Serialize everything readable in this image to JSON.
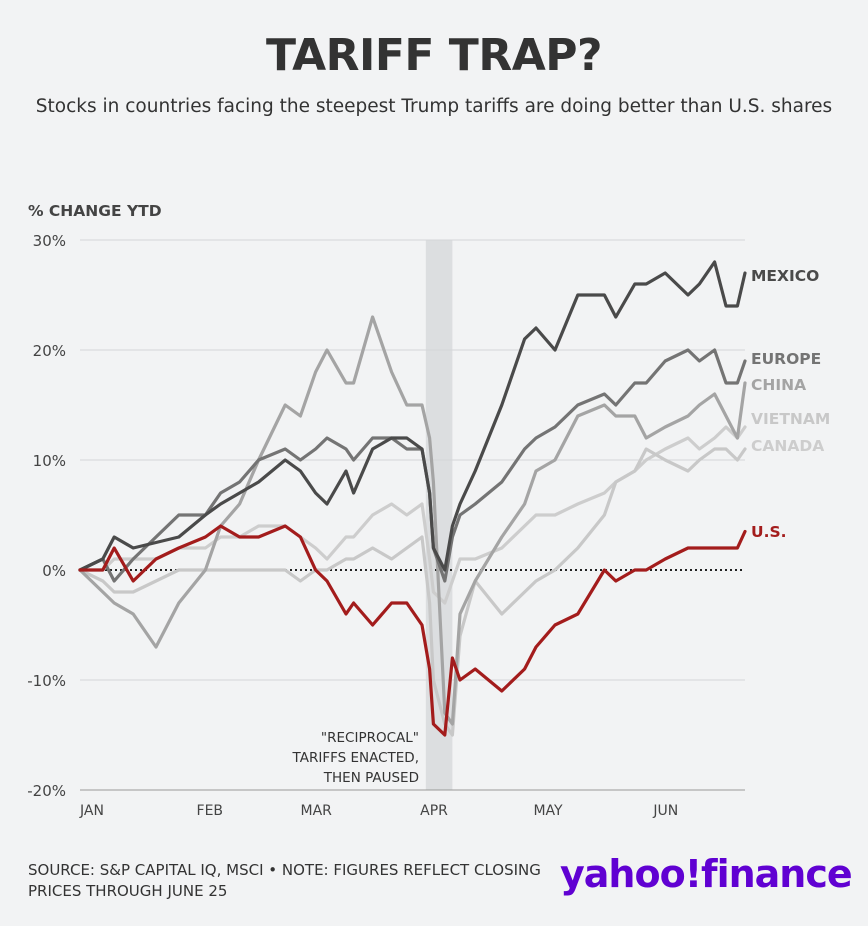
{
  "title": "TARIFF TRAP?",
  "subtitle": "Stocks in countries facing the steepest Trump tariffs are doing better than U.S. shares",
  "source": "SOURCE: S&P CAPITAL IQ, MSCI • NOTE: FIGURES REFLECT CLOSING PRICES THROUGH JUNE 25",
  "logo": {
    "text": "yahoo!finance",
    "color": "#6001d2"
  },
  "chart_data": {
    "type": "line",
    "ylabel": "% CHANGE YTD",
    "ylim": [
      -20,
      30
    ],
    "yticks": [
      "30%",
      "20%",
      "10%",
      "0%",
      "-10%",
      "-20%"
    ],
    "xlim": [
      "2025-01-01",
      "2025-06-25"
    ],
    "xticks": [
      {
        "label": "JAN",
        "date": "2025-01-01"
      },
      {
        "label": "FEB",
        "date": "2025-02-01"
      },
      {
        "label": "MAR",
        "date": "2025-03-01"
      },
      {
        "label": "APR",
        "date": "2025-04-01"
      },
      {
        "label": "MAY",
        "date": "2025-05-01"
      },
      {
        "label": "JUN",
        "date": "2025-06-01"
      }
    ],
    "grid": true,
    "zero_line": "dotted",
    "shaded_period": {
      "start": "2025-04-02",
      "end": "2025-04-09"
    },
    "annotation": [
      "\"RECIPROCAL\"",
      "TARIFFS ENACTED,",
      "THEN PAUSED"
    ],
    "series": [
      {
        "name": "MEXICO",
        "color": "#4a4a4a",
        "points": [
          [
            "2025-01-01",
            0
          ],
          [
            "2025-01-07",
            1
          ],
          [
            "2025-01-10",
            3
          ],
          [
            "2025-01-15",
            2
          ],
          [
            "2025-01-21",
            2.5
          ],
          [
            "2025-01-27",
            3
          ],
          [
            "2025-02-03",
            5
          ],
          [
            "2025-02-07",
            6
          ],
          [
            "2025-02-12",
            7
          ],
          [
            "2025-02-17",
            8
          ],
          [
            "2025-02-24",
            10
          ],
          [
            "2025-02-28",
            9
          ],
          [
            "2025-03-04",
            7
          ],
          [
            "2025-03-07",
            6
          ],
          [
            "2025-03-12",
            9
          ],
          [
            "2025-03-14",
            7
          ],
          [
            "2025-03-19",
            11
          ],
          [
            "2025-03-24",
            12
          ],
          [
            "2025-03-28",
            12
          ],
          [
            "2025-04-01",
            11
          ],
          [
            "2025-04-03",
            7
          ],
          [
            "2025-04-04",
            2
          ],
          [
            "2025-04-07",
            0
          ],
          [
            "2025-04-09",
            4
          ],
          [
            "2025-04-11",
            6
          ],
          [
            "2025-04-15",
            9
          ],
          [
            "2025-04-22",
            15
          ],
          [
            "2025-04-28",
            21
          ],
          [
            "2025-05-01",
            22
          ],
          [
            "2025-05-06",
            20
          ],
          [
            "2025-05-12",
            25
          ],
          [
            "2025-05-19",
            25
          ],
          [
            "2025-05-22",
            23
          ],
          [
            "2025-05-27",
            26
          ],
          [
            "2025-05-30",
            26
          ],
          [
            "2025-06-04",
            27
          ],
          [
            "2025-06-10",
            25
          ],
          [
            "2025-06-13",
            26
          ],
          [
            "2025-06-17",
            28
          ],
          [
            "2025-06-20",
            24
          ],
          [
            "2025-06-23",
            24
          ],
          [
            "2025-06-25",
            27
          ]
        ]
      },
      {
        "name": "EUROPE",
        "color": "#747474",
        "points": [
          [
            "2025-01-01",
            0
          ],
          [
            "2025-01-07",
            1
          ],
          [
            "2025-01-10",
            -1
          ],
          [
            "2025-01-15",
            1
          ],
          [
            "2025-01-21",
            3
          ],
          [
            "2025-01-27",
            5
          ],
          [
            "2025-02-03",
            5
          ],
          [
            "2025-02-07",
            7
          ],
          [
            "2025-02-12",
            8
          ],
          [
            "2025-02-17",
            10
          ],
          [
            "2025-02-24",
            11
          ],
          [
            "2025-02-28",
            10
          ],
          [
            "2025-03-04",
            11
          ],
          [
            "2025-03-07",
            12
          ],
          [
            "2025-03-12",
            11
          ],
          [
            "2025-03-14",
            10
          ],
          [
            "2025-03-19",
            12
          ],
          [
            "2025-03-24",
            12
          ],
          [
            "2025-03-28",
            11
          ],
          [
            "2025-04-01",
            11
          ],
          [
            "2025-04-03",
            7
          ],
          [
            "2025-04-04",
            2
          ],
          [
            "2025-04-07",
            -1
          ],
          [
            "2025-04-09",
            3
          ],
          [
            "2025-04-11",
            5
          ],
          [
            "2025-04-15",
            6
          ],
          [
            "2025-04-22",
            8
          ],
          [
            "2025-04-28",
            11
          ],
          [
            "2025-05-01",
            12
          ],
          [
            "2025-05-06",
            13
          ],
          [
            "2025-05-12",
            15
          ],
          [
            "2025-05-19",
            16
          ],
          [
            "2025-05-22",
            15
          ],
          [
            "2025-05-27",
            17
          ],
          [
            "2025-05-30",
            17
          ],
          [
            "2025-06-04",
            19
          ],
          [
            "2025-06-10",
            20
          ],
          [
            "2025-06-13",
            19
          ],
          [
            "2025-06-17",
            20
          ],
          [
            "2025-06-20",
            17
          ],
          [
            "2025-06-23",
            17
          ],
          [
            "2025-06-25",
            19
          ]
        ]
      },
      {
        "name": "CHINA",
        "color": "#a4a4a4",
        "points": [
          [
            "2025-01-01",
            0
          ],
          [
            "2025-01-07",
            -2
          ],
          [
            "2025-01-10",
            -3
          ],
          [
            "2025-01-15",
            -4
          ],
          [
            "2025-01-21",
            -7
          ],
          [
            "2025-01-27",
            -3
          ],
          [
            "2025-02-03",
            0
          ],
          [
            "2025-02-07",
            4
          ],
          [
            "2025-02-12",
            6
          ],
          [
            "2025-02-17",
            10
          ],
          [
            "2025-02-24",
            15
          ],
          [
            "2025-02-28",
            14
          ],
          [
            "2025-03-04",
            18
          ],
          [
            "2025-03-07",
            20
          ],
          [
            "2025-03-12",
            17
          ],
          [
            "2025-03-14",
            17
          ],
          [
            "2025-03-19",
            23
          ],
          [
            "2025-03-24",
            18
          ],
          [
            "2025-03-28",
            15
          ],
          [
            "2025-04-01",
            15
          ],
          [
            "2025-04-03",
            12
          ],
          [
            "2025-04-04",
            8
          ],
          [
            "2025-04-07",
            -13
          ],
          [
            "2025-04-09",
            -14
          ],
          [
            "2025-04-11",
            -4
          ],
          [
            "2025-04-15",
            -1
          ],
          [
            "2025-04-22",
            3
          ],
          [
            "2025-04-28",
            6
          ],
          [
            "2025-05-01",
            9
          ],
          [
            "2025-05-06",
            10
          ],
          [
            "2025-05-12",
            14
          ],
          [
            "2025-05-19",
            15
          ],
          [
            "2025-05-22",
            14
          ],
          [
            "2025-05-27",
            14
          ],
          [
            "2025-05-30",
            12
          ],
          [
            "2025-06-04",
            13
          ],
          [
            "2025-06-10",
            14
          ],
          [
            "2025-06-13",
            15
          ],
          [
            "2025-06-17",
            16
          ],
          [
            "2025-06-20",
            14
          ],
          [
            "2025-06-23",
            12
          ],
          [
            "2025-06-25",
            17
          ]
        ]
      },
      {
        "name": "VIETNAM",
        "color": "#c8c8c8",
        "points": [
          [
            "2025-01-01",
            0
          ],
          [
            "2025-01-07",
            -1
          ],
          [
            "2025-01-10",
            -2
          ],
          [
            "2025-01-15",
            -2
          ],
          [
            "2025-01-21",
            -1
          ],
          [
            "2025-01-27",
            0
          ],
          [
            "2025-02-03",
            0
          ],
          [
            "2025-02-07",
            0
          ],
          [
            "2025-02-12",
            0
          ],
          [
            "2025-02-17",
            0
          ],
          [
            "2025-02-24",
            0
          ],
          [
            "2025-02-28",
            -1
          ],
          [
            "2025-03-04",
            0
          ],
          [
            "2025-03-07",
            0
          ],
          [
            "2025-03-12",
            1
          ],
          [
            "2025-03-14",
            1
          ],
          [
            "2025-03-19",
            2
          ],
          [
            "2025-03-24",
            1
          ],
          [
            "2025-03-28",
            2
          ],
          [
            "2025-04-01",
            3
          ],
          [
            "2025-04-03",
            -3
          ],
          [
            "2025-04-04",
            -10
          ],
          [
            "2025-04-07",
            -14
          ],
          [
            "2025-04-09",
            -15
          ],
          [
            "2025-04-11",
            -6
          ],
          [
            "2025-04-15",
            -1
          ],
          [
            "2025-04-22",
            -4
          ],
          [
            "2025-04-28",
            -2
          ],
          [
            "2025-05-01",
            -1
          ],
          [
            "2025-05-06",
            0
          ],
          [
            "2025-05-12",
            2
          ],
          [
            "2025-05-19",
            5
          ],
          [
            "2025-05-22",
            8
          ],
          [
            "2025-05-27",
            9
          ],
          [
            "2025-05-30",
            11
          ],
          [
            "2025-06-04",
            10
          ],
          [
            "2025-06-10",
            9
          ],
          [
            "2025-06-13",
            10
          ],
          [
            "2025-06-17",
            11
          ],
          [
            "2025-06-20",
            11
          ],
          [
            "2025-06-23",
            10
          ],
          [
            "2025-06-25",
            11
          ]
        ]
      },
      {
        "name": "CANADA",
        "color": "#cdcdcd",
        "points": [
          [
            "2025-01-01",
            0
          ],
          [
            "2025-01-07",
            0
          ],
          [
            "2025-01-10",
            1
          ],
          [
            "2025-01-15",
            1
          ],
          [
            "2025-01-21",
            1
          ],
          [
            "2025-01-27",
            2
          ],
          [
            "2025-02-03",
            2
          ],
          [
            "2025-02-07",
            3
          ],
          [
            "2025-02-12",
            3
          ],
          [
            "2025-02-17",
            4
          ],
          [
            "2025-02-24",
            4
          ],
          [
            "2025-02-28",
            3
          ],
          [
            "2025-03-04",
            2
          ],
          [
            "2025-03-07",
            1
          ],
          [
            "2025-03-12",
            3
          ],
          [
            "2025-03-14",
            3
          ],
          [
            "2025-03-19",
            5
          ],
          [
            "2025-03-24",
            6
          ],
          [
            "2025-03-28",
            5
          ],
          [
            "2025-04-01",
            6
          ],
          [
            "2025-04-03",
            1
          ],
          [
            "2025-04-04",
            -2
          ],
          [
            "2025-04-07",
            -3
          ],
          [
            "2025-04-09",
            -1
          ],
          [
            "2025-04-11",
            1
          ],
          [
            "2025-04-15",
            1
          ],
          [
            "2025-04-22",
            2
          ],
          [
            "2025-04-28",
            4
          ],
          [
            "2025-05-01",
            5
          ],
          [
            "2025-05-06",
            5
          ],
          [
            "2025-05-12",
            6
          ],
          [
            "2025-05-19",
            7
          ],
          [
            "2025-05-22",
            8
          ],
          [
            "2025-05-27",
            9
          ],
          [
            "2025-05-30",
            10
          ],
          [
            "2025-06-04",
            11
          ],
          [
            "2025-06-10",
            12
          ],
          [
            "2025-06-13",
            11
          ],
          [
            "2025-06-17",
            12
          ],
          [
            "2025-06-20",
            13
          ],
          [
            "2025-06-23",
            12
          ],
          [
            "2025-06-25",
            13
          ]
        ]
      },
      {
        "name": "U.S.",
        "color": "#a31c1c",
        "points": [
          [
            "2025-01-01",
            0
          ],
          [
            "2025-01-07",
            0
          ],
          [
            "2025-01-10",
            2
          ],
          [
            "2025-01-15",
            -1
          ],
          [
            "2025-01-21",
            1
          ],
          [
            "2025-01-27",
            2
          ],
          [
            "2025-02-03",
            3
          ],
          [
            "2025-02-07",
            4
          ],
          [
            "2025-02-12",
            3
          ],
          [
            "2025-02-17",
            3
          ],
          [
            "2025-02-24",
            4
          ],
          [
            "2025-02-28",
            3
          ],
          [
            "2025-03-04",
            0
          ],
          [
            "2025-03-07",
            -1
          ],
          [
            "2025-03-12",
            -4
          ],
          [
            "2025-03-14",
            -3
          ],
          [
            "2025-03-19",
            -5
          ],
          [
            "2025-03-24",
            -3
          ],
          [
            "2025-03-28",
            -3
          ],
          [
            "2025-04-01",
            -5
          ],
          [
            "2025-04-03",
            -9
          ],
          [
            "2025-04-04",
            -14
          ],
          [
            "2025-04-07",
            -15
          ],
          [
            "2025-04-09",
            -8
          ],
          [
            "2025-04-11",
            -10
          ],
          [
            "2025-04-15",
            -9
          ],
          [
            "2025-04-22",
            -11
          ],
          [
            "2025-04-28",
            -9
          ],
          [
            "2025-05-01",
            -7
          ],
          [
            "2025-05-06",
            -5
          ],
          [
            "2025-05-12",
            -4
          ],
          [
            "2025-05-19",
            0
          ],
          [
            "2025-05-22",
            -1
          ],
          [
            "2025-05-27",
            0
          ],
          [
            "2025-05-30",
            0
          ],
          [
            "2025-06-04",
            1
          ],
          [
            "2025-06-10",
            2
          ],
          [
            "2025-06-13",
            2
          ],
          [
            "2025-06-17",
            2
          ],
          [
            "2025-06-20",
            2
          ],
          [
            "2025-06-23",
            2
          ],
          [
            "2025-06-25",
            3.5
          ]
        ]
      }
    ]
  }
}
